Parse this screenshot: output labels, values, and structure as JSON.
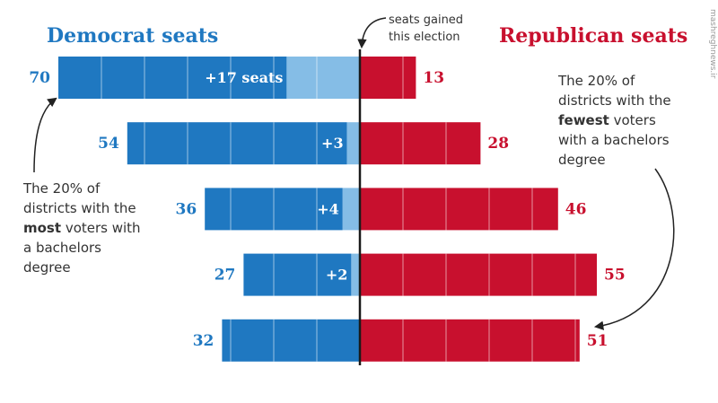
{
  "chart_data": {
    "type": "bar",
    "orientation": "horizontal-diverging",
    "headers": {
      "left": "Democrat seats",
      "right": "Republican seats"
    },
    "center_label": [
      "seats gained",
      "this election"
    ],
    "rows": [
      {
        "dem": 70,
        "gain": 17,
        "gain_label": "+17 seats",
        "rep": 13
      },
      {
        "dem": 54,
        "gain": 3,
        "gain_label": "+3",
        "rep": 28
      },
      {
        "dem": 36,
        "gain": 4,
        "gain_label": "+4",
        "rep": 46
      },
      {
        "dem": 27,
        "gain": 2,
        "gain_label": "+2",
        "rep": 55
      },
      {
        "dem": 32,
        "gain": 0,
        "gain_label": "",
        "rep": 51
      }
    ],
    "colors": {
      "dem": "#1f78c1",
      "dem_gain": "#85bde6",
      "rep": "#c8102e",
      "axis": "#1a1a1a"
    },
    "grid_step": 10
  },
  "annotations": {
    "left": [
      [
        {
          "t": "The 20% of"
        }
      ],
      [
        {
          "t": "districts with the"
        }
      ],
      [
        {
          "t": "most",
          "b": true
        },
        {
          "t": " voters with"
        }
      ],
      [
        {
          "t": "a bachelors"
        }
      ],
      [
        {
          "t": "degree"
        }
      ]
    ],
    "right": [
      [
        {
          "t": "The 20% of"
        }
      ],
      [
        {
          "t": "districts with the"
        }
      ],
      [
        {
          "t": "fewest",
          "b": true
        },
        {
          "t": " voters"
        }
      ],
      [
        {
          "t": "with a bachelors"
        }
      ],
      [
        {
          "t": "degree"
        }
      ]
    ]
  },
  "watermark": "mashreghnews.ir"
}
